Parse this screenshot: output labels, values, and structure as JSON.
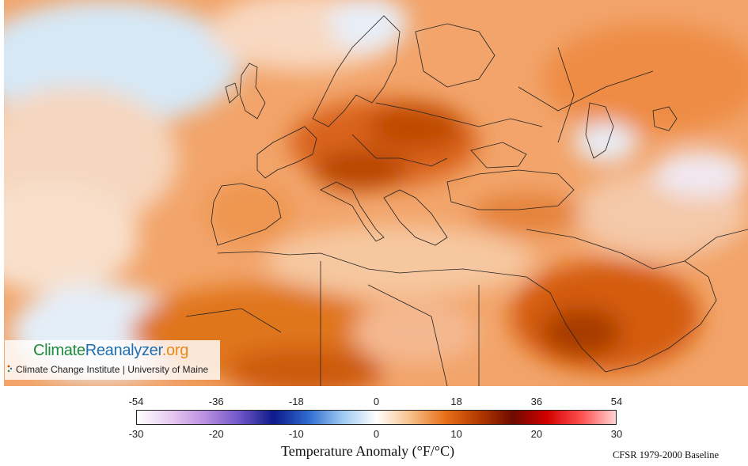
{
  "map": {
    "region": "Europe, North Africa and Middle East",
    "variable": "2-m temperature anomaly",
    "dominant_color": "#ee8838",
    "cold_color": "#d6e8f6",
    "hot_color": "#c04a05"
  },
  "logo": {
    "name_part1": "Climate",
    "name_part2": "Reanalyzer",
    "name_part3": ".org",
    "subtitle": "Climate Change Institute | University of Maine"
  },
  "colorbar": {
    "fahrenheit_ticks": [
      "-54",
      "-36",
      "-18",
      "0",
      "18",
      "36",
      "54"
    ],
    "celsius_ticks": [
      "-30",
      "-20",
      "-10",
      "0",
      "10",
      "20",
      "30"
    ],
    "title": "Temperature Anomaly (°F/°C)",
    "colors": [
      "#ffffff",
      "#e6c9f0",
      "#b98ee0",
      "#6f55c8",
      "#0d1a8a",
      "#2e6ad0",
      "#9cc8f0",
      "#ffffff",
      "#f7c08a",
      "#e87018",
      "#b43a02",
      "#6e0a00",
      "#d40000",
      "#ff5050",
      "#ffd2d2"
    ]
  },
  "baseline": "CFSR 1979-2000 Baseline"
}
